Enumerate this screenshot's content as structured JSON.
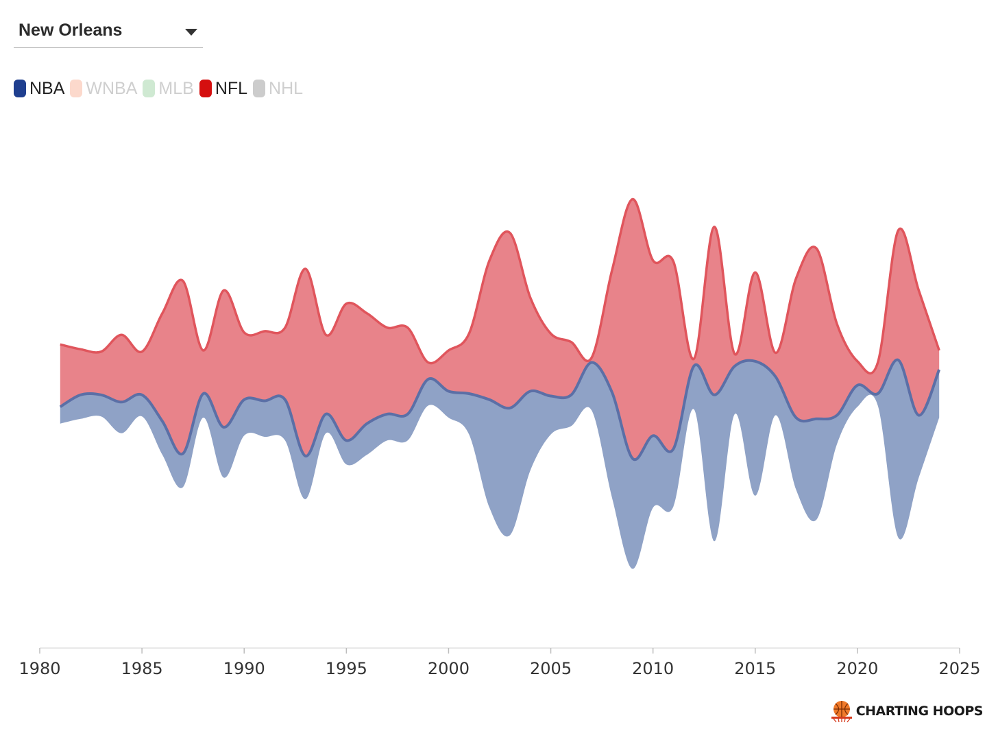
{
  "selector": {
    "value": "New Orleans"
  },
  "legend": [
    {
      "label": "NBA",
      "color": "#1f3f8f",
      "active": true
    },
    {
      "label": "WNBA",
      "color": "#fcd9cc",
      "active": false
    },
    {
      "label": "MLB",
      "color": "#cfe9d2",
      "active": false
    },
    {
      "label": "NFL",
      "color": "#d50f0f",
      "active": true
    },
    {
      "label": "NHL",
      "color": "#cccccc",
      "active": false
    }
  ],
  "brand": {
    "text": "CHARTING HOOPS"
  },
  "chart_data": {
    "type": "area",
    "xlim": [
      1980,
      2025
    ],
    "xticks": [
      1980,
      1985,
      1990,
      1995,
      2000,
      2005,
      2010,
      2015,
      2020,
      2025
    ],
    "series": [
      {
        "name": "NFL",
        "color": "#e8838a",
        "stroke": "#e0555c",
        "values": [
          [
            1981,
            0.26
          ],
          [
            1982,
            0.19
          ],
          [
            1983,
            0.18
          ],
          [
            1984,
            0.28
          ],
          [
            1985,
            0.18
          ],
          [
            1986,
            0.45
          ],
          [
            1987,
            0.72
          ],
          [
            1988,
            0.18
          ],
          [
            1989,
            0.57
          ],
          [
            1990,
            0.28
          ],
          [
            1991,
            0.29
          ],
          [
            1992,
            0.3
          ],
          [
            1993,
            0.78
          ],
          [
            1994,
            0.33
          ],
          [
            1995,
            0.57
          ],
          [
            1996,
            0.46
          ],
          [
            1997,
            0.36
          ],
          [
            1998,
            0.36
          ],
          [
            1999,
            0.07
          ],
          [
            2000,
            0.17
          ],
          [
            2001,
            0.25
          ],
          [
            2002,
            0.58
          ],
          [
            2003,
            0.73
          ],
          [
            2004,
            0.39
          ],
          [
            2005,
            0.26
          ],
          [
            2006,
            0.22
          ],
          [
            2007,
            0.02
          ],
          [
            2008,
            0.51
          ],
          [
            2009,
            1.08
          ],
          [
            2010,
            0.73
          ],
          [
            2011,
            0.78
          ],
          [
            2012,
            0.03
          ],
          [
            2013,
            0.7
          ],
          [
            2014,
            0.05
          ],
          [
            2015,
            0.37
          ],
          [
            2016,
            0.1
          ],
          [
            2017,
            0.58
          ],
          [
            2018,
            0.71
          ],
          [
            2019,
            0.38
          ],
          [
            2020,
            0.1
          ],
          [
            2021,
            0.13
          ],
          [
            2022,
            0.54
          ],
          [
            2023,
            0.52
          ],
          [
            2024,
            0.08
          ]
        ]
      },
      {
        "name": "NBA",
        "color": "#8fa2c6",
        "stroke": "#5b6fa6",
        "values": [
          [
            1981,
            0.07
          ],
          [
            1982,
            0.1
          ],
          [
            1983,
            0.09
          ],
          [
            1984,
            0.13
          ],
          [
            1985,
            0.09
          ],
          [
            1986,
            0.14
          ],
          [
            1987,
            0.14
          ],
          [
            1988,
            0.1
          ],
          [
            1989,
            0.21
          ],
          [
            1990,
            0.15
          ],
          [
            1991,
            0.15
          ],
          [
            1992,
            0.17
          ],
          [
            1993,
            0.18
          ],
          [
            1994,
            0.08
          ],
          [
            1995,
            0.1
          ],
          [
            1996,
            0.13
          ],
          [
            1997,
            0.11
          ],
          [
            1998,
            0.11
          ],
          [
            1999,
            0.11
          ],
          [
            2000,
            0.11
          ],
          [
            2001,
            0.17
          ],
          [
            2002,
            0.45
          ],
          [
            2003,
            0.53
          ],
          [
            2004,
            0.33
          ],
          [
            2005,
            0.16
          ],
          [
            2006,
            0.13
          ],
          [
            2007,
            0.2
          ],
          [
            2008,
            0.44
          ],
          [
            2009,
            0.46
          ],
          [
            2010,
            0.3
          ],
          [
            2011,
            0.24
          ],
          [
            2012,
            0.18
          ],
          [
            2013,
            0.61
          ],
          [
            2014,
            0.2
          ],
          [
            2015,
            0.56
          ],
          [
            2016,
            0.16
          ],
          [
            2017,
            0.3
          ],
          [
            2018,
            0.42
          ],
          [
            2019,
            0.12
          ],
          [
            2020,
            0.09
          ],
          [
            2021,
            0.05
          ],
          [
            2022,
            0.74
          ],
          [
            2023,
            0.26
          ],
          [
            2024,
            0.2
          ]
        ]
      }
    ],
    "xlabel": "",
    "ylabel": "",
    "grid": false
  }
}
